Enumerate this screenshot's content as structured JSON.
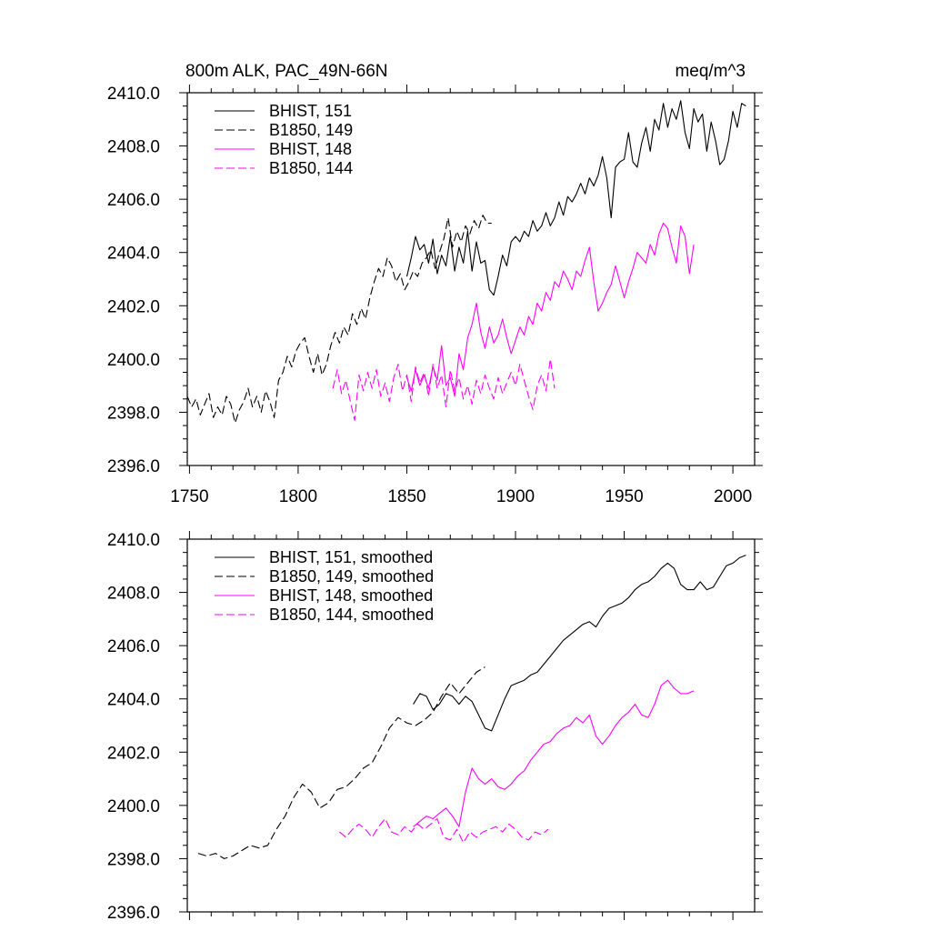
{
  "title_left": "800m ALK, PAC_49N-66N",
  "title_right": "meq/m^3",
  "colors": {
    "black": "#000000",
    "magenta": "#ff00ff"
  },
  "chart_data": [
    {
      "type": "line",
      "title": "800m ALK, PAC_49N-66N",
      "units": "meq/m^3",
      "xlim": [
        1749,
        2010
      ],
      "ylim": [
        2396,
        2410
      ],
      "xticks": [
        "1750",
        "1800",
        "1850",
        "1900",
        "1950",
        "2000"
      ],
      "yticks": [
        "2396.0",
        "2398.0",
        "2400.0",
        "2402.0",
        "2404.0",
        "2406.0",
        "2408.0",
        "2410.0"
      ],
      "legend_position": "top-left",
      "grid": false,
      "series": [
        {
          "name": "BHIST, 151",
          "color": "#000000",
          "dash": "solid",
          "x": [
            1850,
            1852,
            1854,
            1856,
            1858,
            1860,
            1862,
            1864,
            1866,
            1868,
            1870,
            1872,
            1874,
            1876,
            1878,
            1880,
            1882,
            1884,
            1886,
            1888,
            1890,
            1892,
            1894,
            1896,
            1898,
            1900,
            1902,
            1904,
            1906,
            1908,
            1910,
            1912,
            1914,
            1916,
            1918,
            1920,
            1922,
            1924,
            1926,
            1928,
            1930,
            1932,
            1934,
            1936,
            1938,
            1940,
            1942,
            1944,
            1946,
            1948,
            1950,
            1952,
            1954,
            1956,
            1958,
            1960,
            1962,
            1964,
            1966,
            1968,
            1970,
            1972,
            1974,
            1976,
            1978,
            1980,
            1982,
            1984,
            1986,
            1988,
            1990,
            1992,
            1994,
            1996,
            1998,
            2000,
            2002,
            2004,
            2006
          ],
          "y": [
            2403.1,
            2403.8,
            2404.6,
            2404.1,
            2404.3,
            2403.6,
            2404.5,
            2403.2,
            2403.9,
            2403.5,
            2404.6,
            2403.3,
            2404.2,
            2403.6,
            2404.8,
            2403.3,
            2404.4,
            2403.6,
            2403.7,
            2402.6,
            2402.4,
            2403.1,
            2403.9,
            2403.5,
            2404.4,
            2404.6,
            2404.4,
            2404.8,
            2404.6,
            2405.2,
            2404.8,
            2405.0,
            2405.5,
            2405.0,
            2405.3,
            2405.9,
            2405.4,
            2406.1,
            2405.9,
            2406.2,
            2406.6,
            2406.2,
            2406.8,
            2406.5,
            2406.9,
            2407.6,
            2406.8,
            2405.3,
            2407.2,
            2407.4,
            2407.5,
            2408.5,
            2407.4,
            2407.2,
            2408.1,
            2408.7,
            2407.8,
            2409.0,
            2408.6,
            2409.6,
            2408.7,
            2409.4,
            2409.0,
            2409.7,
            2408.5,
            2407.9,
            2409.4,
            2408.9,
            2409.2,
            2407.8,
            2408.9,
            2408.2,
            2407.3,
            2407.5,
            2408.2,
            2409.3,
            2408.7,
            2409.6,
            2409.5
          ]
        },
        {
          "name": "B1850, 149",
          "color": "#000000",
          "dash": "dashed",
          "x": [
            1749,
            1751,
            1753,
            1755,
            1757,
            1759,
            1761,
            1763,
            1765,
            1767,
            1769,
            1771,
            1773,
            1775,
            1777,
            1779,
            1781,
            1783,
            1785,
            1787,
            1789,
            1791,
            1793,
            1795,
            1797,
            1799,
            1801,
            1803,
            1805,
            1807,
            1809,
            1811,
            1813,
            1815,
            1817,
            1819,
            1821,
            1823,
            1825,
            1827,
            1829,
            1831,
            1833,
            1835,
            1837,
            1839,
            1841,
            1843,
            1845,
            1847,
            1849,
            1851,
            1853,
            1855,
            1857,
            1859,
            1861,
            1863,
            1865,
            1867,
            1869,
            1871,
            1873,
            1875,
            1877,
            1879,
            1881,
            1883,
            1885,
            1887,
            1889
          ],
          "y": [
            2398.6,
            2398.2,
            2398.5,
            2397.9,
            2398.3,
            2398.7,
            2397.8,
            2398.2,
            2397.9,
            2398.6,
            2398.3,
            2397.6,
            2398.1,
            2398.4,
            2398.9,
            2398.2,
            2398.6,
            2398.0,
            2398.8,
            2398.4,
            2397.8,
            2399.2,
            2399.5,
            2400.1,
            2399.7,
            2400.3,
            2400.6,
            2400.8,
            2400.1,
            2399.5,
            2400.2,
            2399.4,
            2399.8,
            2400.5,
            2401.0,
            2400.6,
            2401.2,
            2400.9,
            2401.7,
            2401.3,
            2401.9,
            2401.5,
            2402.3,
            2402.9,
            2403.4,
            2403.1,
            2403.8,
            2403.5,
            2402.9,
            2403.2,
            2402.6,
            2402.9,
            2403.3,
            2403.1,
            2403.6,
            2403.8,
            2404.1,
            2403.4,
            2404.0,
            2404.5,
            2405.3,
            2404.2,
            2404.8,
            2404.4,
            2405.0,
            2404.7,
            2405.2,
            2404.9,
            2405.4,
            2405.1,
            2405.1
          ]
        },
        {
          "name": "BHIST, 148",
          "color": "#ff00ff",
          "dash": "solid",
          "x": [
            1850,
            1852,
            1854,
            1856,
            1858,
            1860,
            1862,
            1864,
            1866,
            1868,
            1870,
            1872,
            1874,
            1876,
            1878,
            1880,
            1882,
            1884,
            1886,
            1888,
            1890,
            1892,
            1894,
            1896,
            1898,
            1900,
            1902,
            1904,
            1906,
            1908,
            1910,
            1912,
            1914,
            1916,
            1918,
            1920,
            1922,
            1924,
            1926,
            1928,
            1930,
            1932,
            1934,
            1936,
            1938,
            1940,
            1942,
            1944,
            1946,
            1948,
            1950,
            1952,
            1954,
            1956,
            1958,
            1960,
            1962,
            1964,
            1966,
            1968,
            1970,
            1972,
            1974,
            1976,
            1978,
            1980,
            1982
          ],
          "y": [
            2399.3,
            2398.8,
            2399.6,
            2399.0,
            2399.4,
            2398.9,
            2399.7,
            2399.2,
            2400.5,
            2399.0,
            2399.3,
            2398.6,
            2400.2,
            2399.6,
            2400.8,
            2401.3,
            2402.1,
            2401.0,
            2400.4,
            2401.2,
            2400.6,
            2400.9,
            2401.5,
            2400.8,
            2400.2,
            2400.7,
            2401.2,
            2400.9,
            2401.6,
            2401.3,
            2402.1,
            2401.8,
            2402.5,
            2402.2,
            2402.9,
            2402.7,
            2403.3,
            2403.0,
            2402.6,
            2403.3,
            2403.1,
            2403.7,
            2404.2,
            2402.9,
            2401.8,
            2402.1,
            2402.5,
            2402.8,
            2403.5,
            2402.9,
            2402.3,
            2402.9,
            2403.4,
            2404.0,
            2403.8,
            2403.6,
            2404.3,
            2403.9,
            2404.7,
            2405.1,
            2404.9,
            2404.2,
            2403.6,
            2405.0,
            2404.6,
            2403.2,
            2404.3
          ]
        },
        {
          "name": "B1850, 144",
          "color": "#ff00ff",
          "dash": "dashed",
          "x": [
            1816,
            1818,
            1820,
            1822,
            1824,
            1826,
            1828,
            1830,
            1832,
            1834,
            1836,
            1838,
            1840,
            1842,
            1844,
            1846,
            1848,
            1850,
            1852,
            1854,
            1856,
            1858,
            1860,
            1862,
            1864,
            1866,
            1868,
            1870,
            1872,
            1874,
            1876,
            1878,
            1880,
            1882,
            1884,
            1886,
            1888,
            1890,
            1892,
            1894,
            1896,
            1898,
            1900,
            1902,
            1904,
            1906,
            1908,
            1910,
            1912,
            1914,
            1916,
            1918
          ],
          "y": [
            2398.9,
            2399.6,
            2398.7,
            2399.2,
            2398.4,
            2397.7,
            2399.4,
            2398.8,
            2399.5,
            2398.9,
            2399.6,
            2398.6,
            2399.1,
            2398.4,
            2399.3,
            2399.8,
            2398.8,
            2399.4,
            2398.4,
            2399.7,
            2399.1,
            2399.5,
            2398.6,
            2399.8,
            2398.9,
            2399.4,
            2398.2,
            2399.6,
            2398.8,
            2399.3,
            2398.5,
            2399.0,
            2398.3,
            2399.2,
            2398.7,
            2399.4,
            2398.9,
            2398.5,
            2399.3,
            2398.7,
            2399.1,
            2399.5,
            2399.0,
            2399.8,
            2399.2,
            2398.6,
            2398.1,
            2399.0,
            2399.4,
            2398.8,
            2400.0,
            2398.9
          ]
        }
      ]
    },
    {
      "type": "line",
      "xlim": [
        1749,
        2010
      ],
      "ylim": [
        2396,
        2410
      ],
      "yticks": [
        "2396.0",
        "2398.0",
        "2400.0",
        "2402.0",
        "2404.0",
        "2406.0",
        "2408.0",
        "2410.0"
      ],
      "legend_position": "top-left",
      "grid": false,
      "series": [
        {
          "name": "BHIST, 151, smoothed",
          "color": "#000000",
          "dash": "solid",
          "x": [
            1853,
            1856,
            1859,
            1862,
            1865,
            1868,
            1871,
            1874,
            1877,
            1880,
            1883,
            1886,
            1889,
            1892,
            1895,
            1898,
            1901,
            1904,
            1907,
            1910,
            1913,
            1916,
            1919,
            1922,
            1925,
            1928,
            1931,
            1934,
            1937,
            1940,
            1943,
            1946,
            1949,
            1952,
            1955,
            1958,
            1961,
            1964,
            1967,
            1970,
            1973,
            1976,
            1979,
            1982,
            1985,
            1988,
            1991,
            1994,
            1997,
            2000,
            2003,
            2006
          ],
          "y": [
            2403.8,
            2404.2,
            2404.1,
            2403.6,
            2403.8,
            2404.2,
            2404.1,
            2403.8,
            2404.1,
            2403.9,
            2403.4,
            2402.9,
            2402.8,
            2403.4,
            2404.0,
            2404.5,
            2404.6,
            2404.7,
            2404.9,
            2405.0,
            2405.3,
            2405.6,
            2405.9,
            2406.2,
            2406.4,
            2406.6,
            2406.8,
            2406.9,
            2406.7,
            2407.1,
            2407.4,
            2407.5,
            2407.6,
            2407.8,
            2408.1,
            2408.3,
            2408.4,
            2408.6,
            2408.9,
            2409.1,
            2408.9,
            2408.3,
            2408.1,
            2408.1,
            2408.4,
            2408.1,
            2408.2,
            2408.6,
            2409.0,
            2409.1,
            2409.3,
            2409.4
          ]
        },
        {
          "name": "B1850, 149, smoothed",
          "color": "#000000",
          "dash": "dashed",
          "x": [
            1754,
            1758,
            1762,
            1766,
            1770,
            1774,
            1778,
            1782,
            1786,
            1790,
            1794,
            1798,
            1802,
            1806,
            1810,
            1814,
            1818,
            1822,
            1826,
            1830,
            1834,
            1838,
            1842,
            1846,
            1850,
            1854,
            1858,
            1862,
            1866,
            1870,
            1874,
            1878,
            1882,
            1886
          ],
          "y": [
            2398.2,
            2398.1,
            2398.2,
            2398.0,
            2398.1,
            2398.3,
            2398.5,
            2398.4,
            2398.5,
            2399.1,
            2399.6,
            2400.3,
            2400.8,
            2400.5,
            2399.9,
            2400.1,
            2400.6,
            2400.7,
            2401.0,
            2401.4,
            2401.6,
            2402.2,
            2402.9,
            2403.3,
            2403.1,
            2403.0,
            2403.2,
            2403.5,
            2404.1,
            2404.6,
            2404.2,
            2404.6,
            2405.0,
            2405.2
          ]
        },
        {
          "name": "BHIST, 148, smoothed",
          "color": "#ff00ff",
          "dash": "solid",
          "x": [
            1853,
            1856,
            1859,
            1862,
            1865,
            1868,
            1871,
            1874,
            1877,
            1880,
            1883,
            1886,
            1889,
            1892,
            1895,
            1898,
            1901,
            1904,
            1907,
            1910,
            1913,
            1916,
            1919,
            1922,
            1925,
            1928,
            1931,
            1934,
            1937,
            1940,
            1943,
            1946,
            1949,
            1952,
            1955,
            1958,
            1961,
            1964,
            1967,
            1970,
            1973,
            1976,
            1979,
            1982
          ],
          "y": [
            2399.2,
            2399.4,
            2399.6,
            2399.5,
            2399.7,
            2399.9,
            2399.6,
            2399.2,
            2400.5,
            2401.4,
            2401.0,
            2400.8,
            2401.0,
            2400.7,
            2400.6,
            2400.8,
            2401.1,
            2401.3,
            2401.7,
            2402.0,
            2402.3,
            2402.4,
            2402.7,
            2402.9,
            2403.0,
            2403.3,
            2403.1,
            2403.4,
            2402.6,
            2402.3,
            2402.6,
            2403.0,
            2403.3,
            2403.5,
            2403.8,
            2403.4,
            2403.3,
            2403.8,
            2404.5,
            2404.7,
            2404.4,
            2404.2,
            2404.2,
            2404.3
          ]
        },
        {
          "name": "B1850, 144, smoothed",
          "color": "#ff00ff",
          "dash": "dashed",
          "x": [
            1819,
            1822,
            1825,
            1828,
            1831,
            1834,
            1837,
            1840,
            1843,
            1846,
            1849,
            1852,
            1855,
            1858,
            1861,
            1864,
            1867,
            1870,
            1873,
            1876,
            1879,
            1882,
            1885,
            1888,
            1891,
            1894,
            1897,
            1900,
            1903,
            1906,
            1909,
            1912,
            1915
          ],
          "y": [
            2399.0,
            2398.8,
            2399.1,
            2399.3,
            2399.1,
            2398.8,
            2399.2,
            2399.5,
            2399.0,
            2398.9,
            2399.2,
            2399.0,
            2399.3,
            2399.1,
            2399.3,
            2399.5,
            2398.8,
            2398.7,
            2399.1,
            2398.6,
            2399.0,
            2398.8,
            2399.0,
            2399.1,
            2399.2,
            2399.0,
            2399.3,
            2399.1,
            2398.8,
            2398.7,
            2399.0,
            2398.9,
            2399.1
          ]
        }
      ]
    }
  ]
}
